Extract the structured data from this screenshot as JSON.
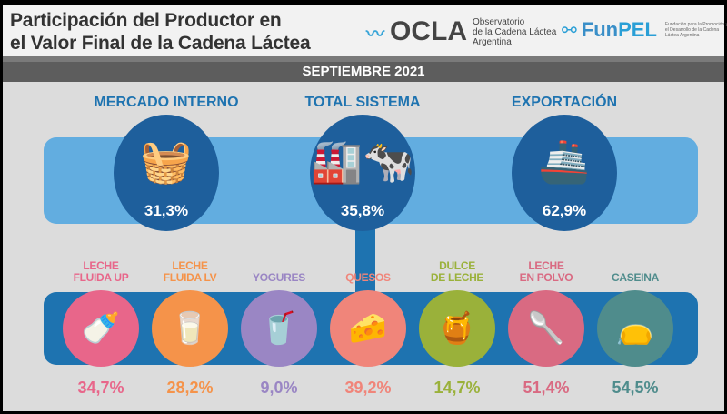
{
  "header": {
    "title_line1": "Participación del Productor en",
    "title_line2": "el Valor Final de la Cadena Láctea",
    "ocla": {
      "name": "OCLA",
      "sub1": "Observatorio",
      "sub2": "de la Cadena Láctea",
      "sub3": "Argentina"
    },
    "funpel": {
      "name_a": "Fun",
      "name_b": "PEL",
      "sub": "Fundación para la Promoción y el Desarrollo de la Cadena Láctea Argentina"
    }
  },
  "period": "SEPTIEMBRE 2021",
  "sections": [
    {
      "title": "MERCADO INTERNO",
      "value": "31,3%",
      "icon": "basket-icon",
      "glyph": "🧺"
    },
    {
      "title": "TOTAL SISTEMA",
      "value": "35,8%",
      "icon": "factory-cow-icon",
      "glyph": "🏭🐄"
    },
    {
      "title": "EXPORTACIÓN",
      "value": "62,9%",
      "icon": "cargo-ship-icon",
      "glyph": "🚢"
    }
  ],
  "products": [
    {
      "l1": "LECHE",
      "l2": "FLUIDA UP",
      "value": "34,7%",
      "color": "#e8668a",
      "icon": "milk-bottle-icon",
      "glyph": "🍼"
    },
    {
      "l1": "LECHE",
      "l2": "FLUIDA LV",
      "value": "28,2%",
      "color": "#f5934a",
      "icon": "milk-carton-icon",
      "glyph": "🥛"
    },
    {
      "l1": "",
      "l2": "YOGURES",
      "value": "9,0%",
      "color": "#9a86c4",
      "icon": "yogurt-cup-icon",
      "glyph": "🥤"
    },
    {
      "l1": "",
      "l2": "QUESOS",
      "value": "39,2%",
      "color": "#f0857a",
      "icon": "cheese-icon",
      "glyph": "🧀"
    },
    {
      "l1": "DULCE",
      "l2": "DE LECHE",
      "value": "14,7%",
      "color": "#9ab13a",
      "icon": "jar-icon",
      "glyph": "🍯"
    },
    {
      "l1": "LECHE",
      "l2": "EN POLVO",
      "value": "51,4%",
      "color": "#d96a82",
      "icon": "spoon-powder-icon",
      "glyph": "🥄"
    },
    {
      "l1": "",
      "l2": "CASEINA",
      "value": "54,5%",
      "color": "#4f8c8c",
      "icon": "sack-icon",
      "glyph": "👝"
    }
  ]
}
